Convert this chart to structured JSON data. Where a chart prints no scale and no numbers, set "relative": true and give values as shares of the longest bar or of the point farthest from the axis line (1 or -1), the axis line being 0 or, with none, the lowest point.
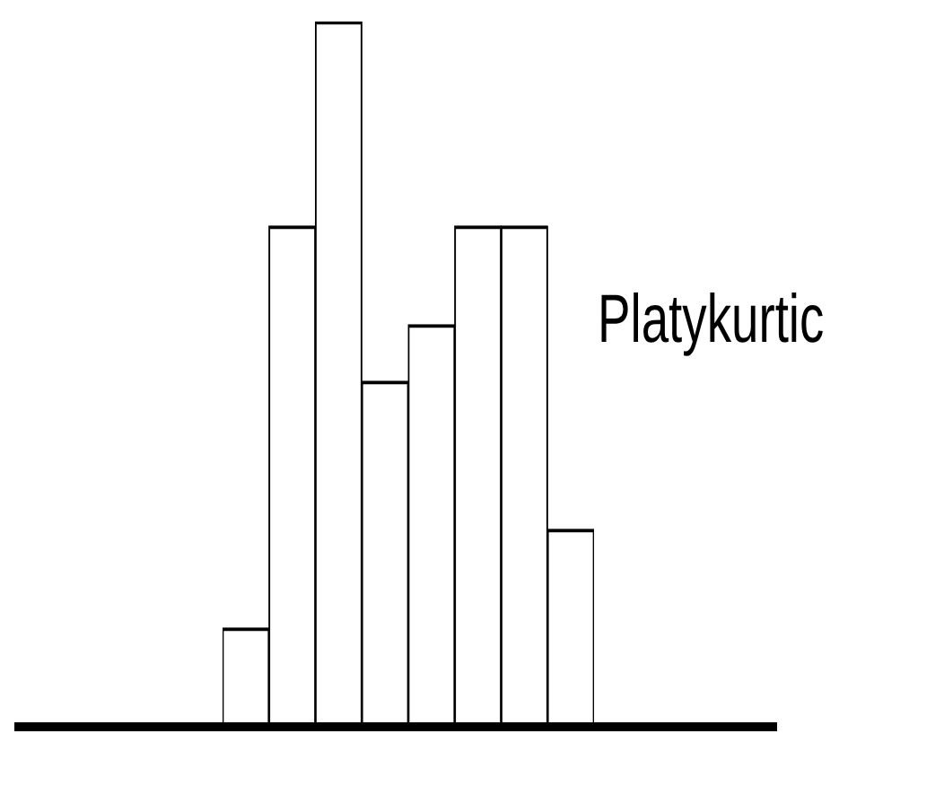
{
  "chart_data": {
    "type": "bar",
    "relative": true,
    "categories": [
      null,
      null,
      null,
      null,
      null,
      null,
      null,
      null
    ],
    "values": [
      0.14,
      0.71,
      1,
      0.49,
      0.57,
      0.71,
      0.71,
      0.28
    ],
    "color": "#ffffff",
    "annotations": [
      "Platykurtic"
    ]
  }
}
